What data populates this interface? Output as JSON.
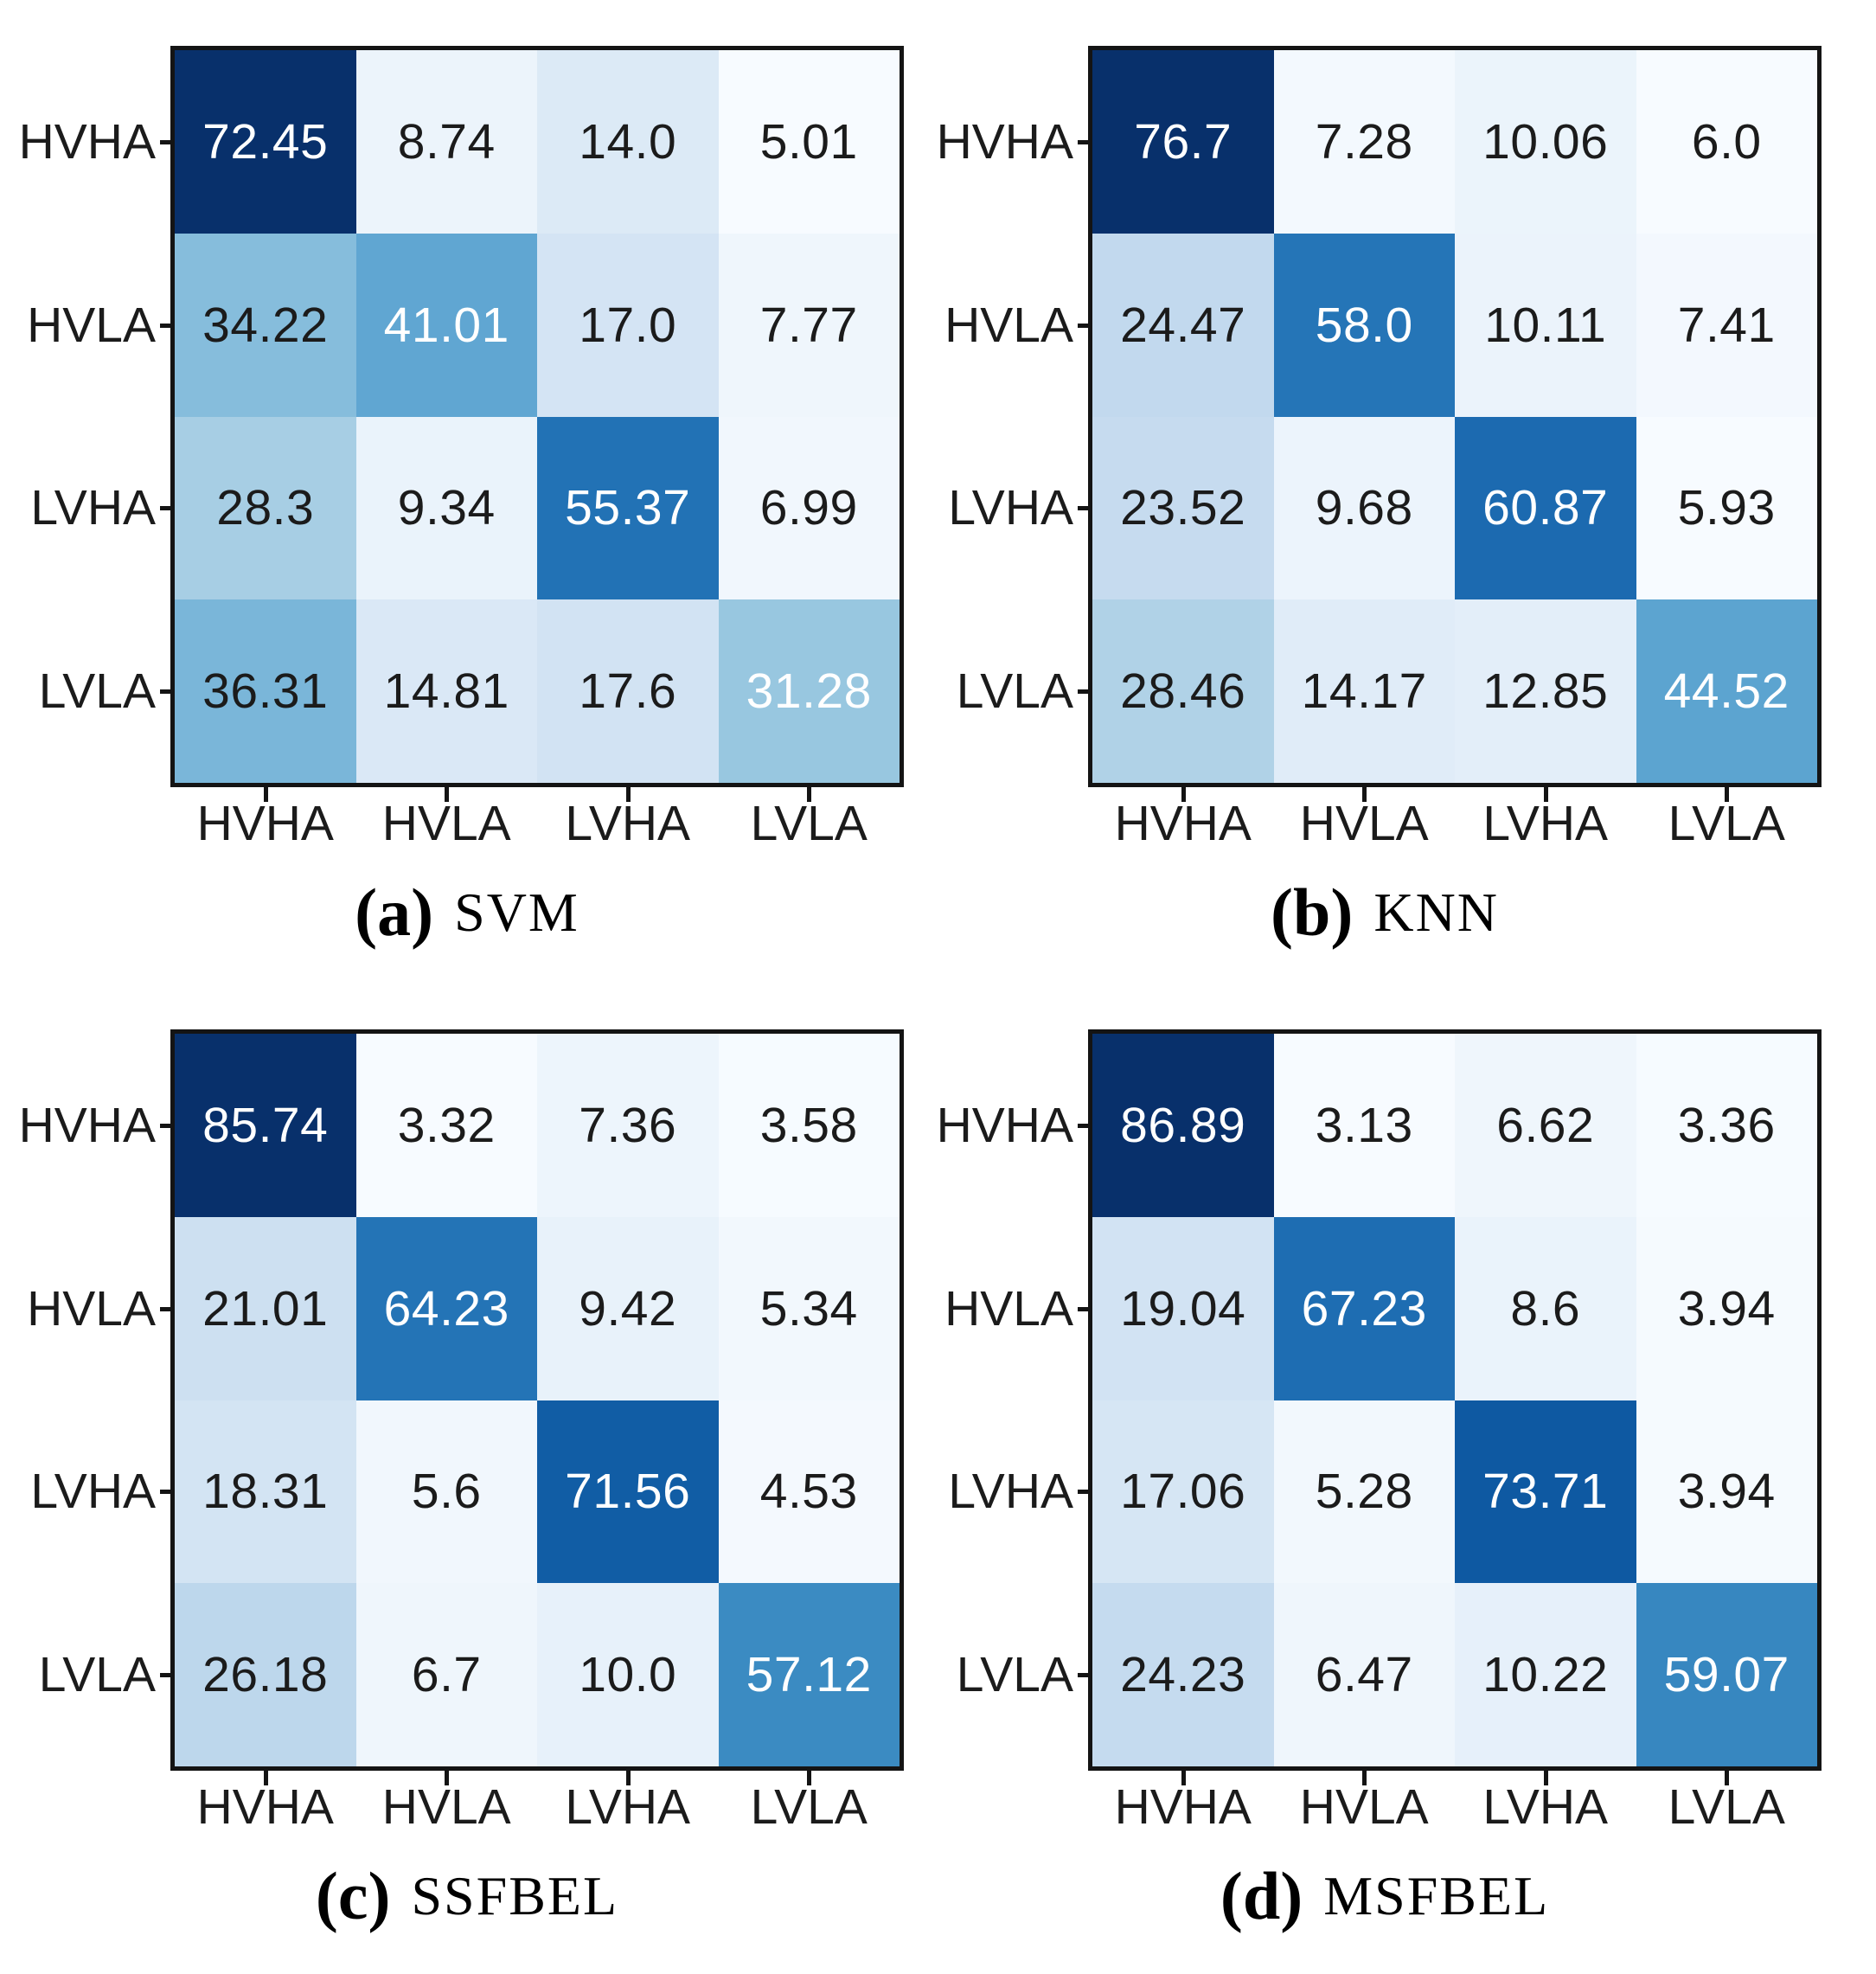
{
  "figure": {
    "description": "Four-panel figure of confusion matrices (percent) for emotion classification into valence/arousal quadrants",
    "classes": [
      "HVHA",
      "HVLA",
      "LVHA",
      "LVLA"
    ],
    "colormap": {
      "name": "Blues",
      "anchors": [
        "#f7fbff",
        "#deebf7",
        "#c6dbef",
        "#9ecae1",
        "#6baed6",
        "#4292c6",
        "#2171b5",
        "#08519c",
        "#08306b"
      ]
    },
    "text_colors": {
      "diagonal": "#ffffff",
      "off_diagonal": "#1b1b1b"
    },
    "border_color": "#141414",
    "background_color": "#ffffff",
    "panels": [
      {
        "caption_label": "(a)",
        "caption_text": "SVM",
        "cells": [
          [
            "72.45",
            "8.74",
            "14.0",
            "5.01"
          ],
          [
            "34.22",
            "41.01",
            "17.0",
            "7.77"
          ],
          [
            "28.3",
            "9.34",
            "55.37",
            "6.99"
          ],
          [
            "36.31",
            "14.81",
            "17.6",
            "31.28"
          ]
        ]
      },
      {
        "caption_label": "(b)",
        "caption_text": "KNN",
        "cells": [
          [
            "76.7",
            "7.28",
            "10.06",
            "6.0"
          ],
          [
            "24.47",
            "58.0",
            "10.11",
            "7.41"
          ],
          [
            "23.52",
            "9.68",
            "60.87",
            "5.93"
          ],
          [
            "28.46",
            "14.17",
            "12.85",
            "44.52"
          ]
        ]
      },
      {
        "caption_label": "(c)",
        "caption_text": "SSFBEL",
        "cells": [
          [
            "85.74",
            "3.32",
            "7.36",
            "3.58"
          ],
          [
            "21.01",
            "64.23",
            "9.42",
            "5.34"
          ],
          [
            "18.31",
            "5.6",
            "71.56",
            "4.53"
          ],
          [
            "26.18",
            "6.7",
            "10.0",
            "57.12"
          ]
        ]
      },
      {
        "caption_label": "(d)",
        "caption_text": "MSFBEL",
        "cells": [
          [
            "86.89",
            "3.13",
            "6.62",
            "3.36"
          ],
          [
            "19.04",
            "67.23",
            "8.6",
            "3.94"
          ],
          [
            "17.06",
            "5.28",
            "73.71",
            "3.94"
          ],
          [
            "24.23",
            "6.47",
            "10.22",
            "59.07"
          ]
        ]
      }
    ]
  },
  "chart_data": [
    {
      "type": "heatmap",
      "title": "(a) SVM",
      "x_categories": [
        "HVHA",
        "HVLA",
        "LVHA",
        "LVLA"
      ],
      "y_categories": [
        "HVHA",
        "HVLA",
        "LVHA",
        "LVLA"
      ],
      "values": [
        [
          72.45,
          8.74,
          14.0,
          5.01
        ],
        [
          34.22,
          41.01,
          17.0,
          7.77
        ],
        [
          28.3,
          9.34,
          55.37,
          6.99
        ],
        [
          36.31,
          14.81,
          17.6,
          31.28
        ]
      ],
      "colormap": "Blues",
      "normalization": "per-panel min-max",
      "unit": "percent",
      "grid": false,
      "legend": "none"
    },
    {
      "type": "heatmap",
      "title": "(b) KNN",
      "x_categories": [
        "HVHA",
        "HVLA",
        "LVHA",
        "LVLA"
      ],
      "y_categories": [
        "HVHA",
        "HVLA",
        "LVHA",
        "LVLA"
      ],
      "values": [
        [
          76.7,
          7.28,
          10.06,
          6.0
        ],
        [
          24.47,
          58.0,
          10.11,
          7.41
        ],
        [
          23.52,
          9.68,
          60.87,
          5.93
        ],
        [
          28.46,
          14.17,
          12.85,
          44.52
        ]
      ],
      "colormap": "Blues",
      "normalization": "per-panel min-max",
      "unit": "percent",
      "grid": false,
      "legend": "none"
    },
    {
      "type": "heatmap",
      "title": "(c) SSFBEL",
      "x_categories": [
        "HVHA",
        "HVLA",
        "LVHA",
        "LVLA"
      ],
      "y_categories": [
        "HVHA",
        "HVLA",
        "LVHA",
        "LVLA"
      ],
      "values": [
        [
          85.74,
          3.32,
          7.36,
          3.58
        ],
        [
          21.01,
          64.23,
          9.42,
          5.34
        ],
        [
          18.31,
          5.6,
          71.56,
          4.53
        ],
        [
          26.18,
          6.7,
          10.0,
          57.12
        ]
      ],
      "colormap": "Blues",
      "normalization": "per-panel min-max",
      "unit": "percent",
      "grid": false,
      "legend": "none"
    },
    {
      "type": "heatmap",
      "title": "(d) MSFBEL",
      "x_categories": [
        "HVHA",
        "HVLA",
        "LVHA",
        "LVLA"
      ],
      "y_categories": [
        "HVHA",
        "HVLA",
        "LVHA",
        "LVLA"
      ],
      "values": [
        [
          86.89,
          3.13,
          6.62,
          3.36
        ],
        [
          19.04,
          67.23,
          8.6,
          3.94
        ],
        [
          17.06,
          5.28,
          73.71,
          3.94
        ],
        [
          24.23,
          6.47,
          10.22,
          59.07
        ]
      ],
      "colormap": "Blues",
      "normalization": "per-panel min-max",
      "unit": "percent",
      "grid": false,
      "legend": "none"
    }
  ]
}
